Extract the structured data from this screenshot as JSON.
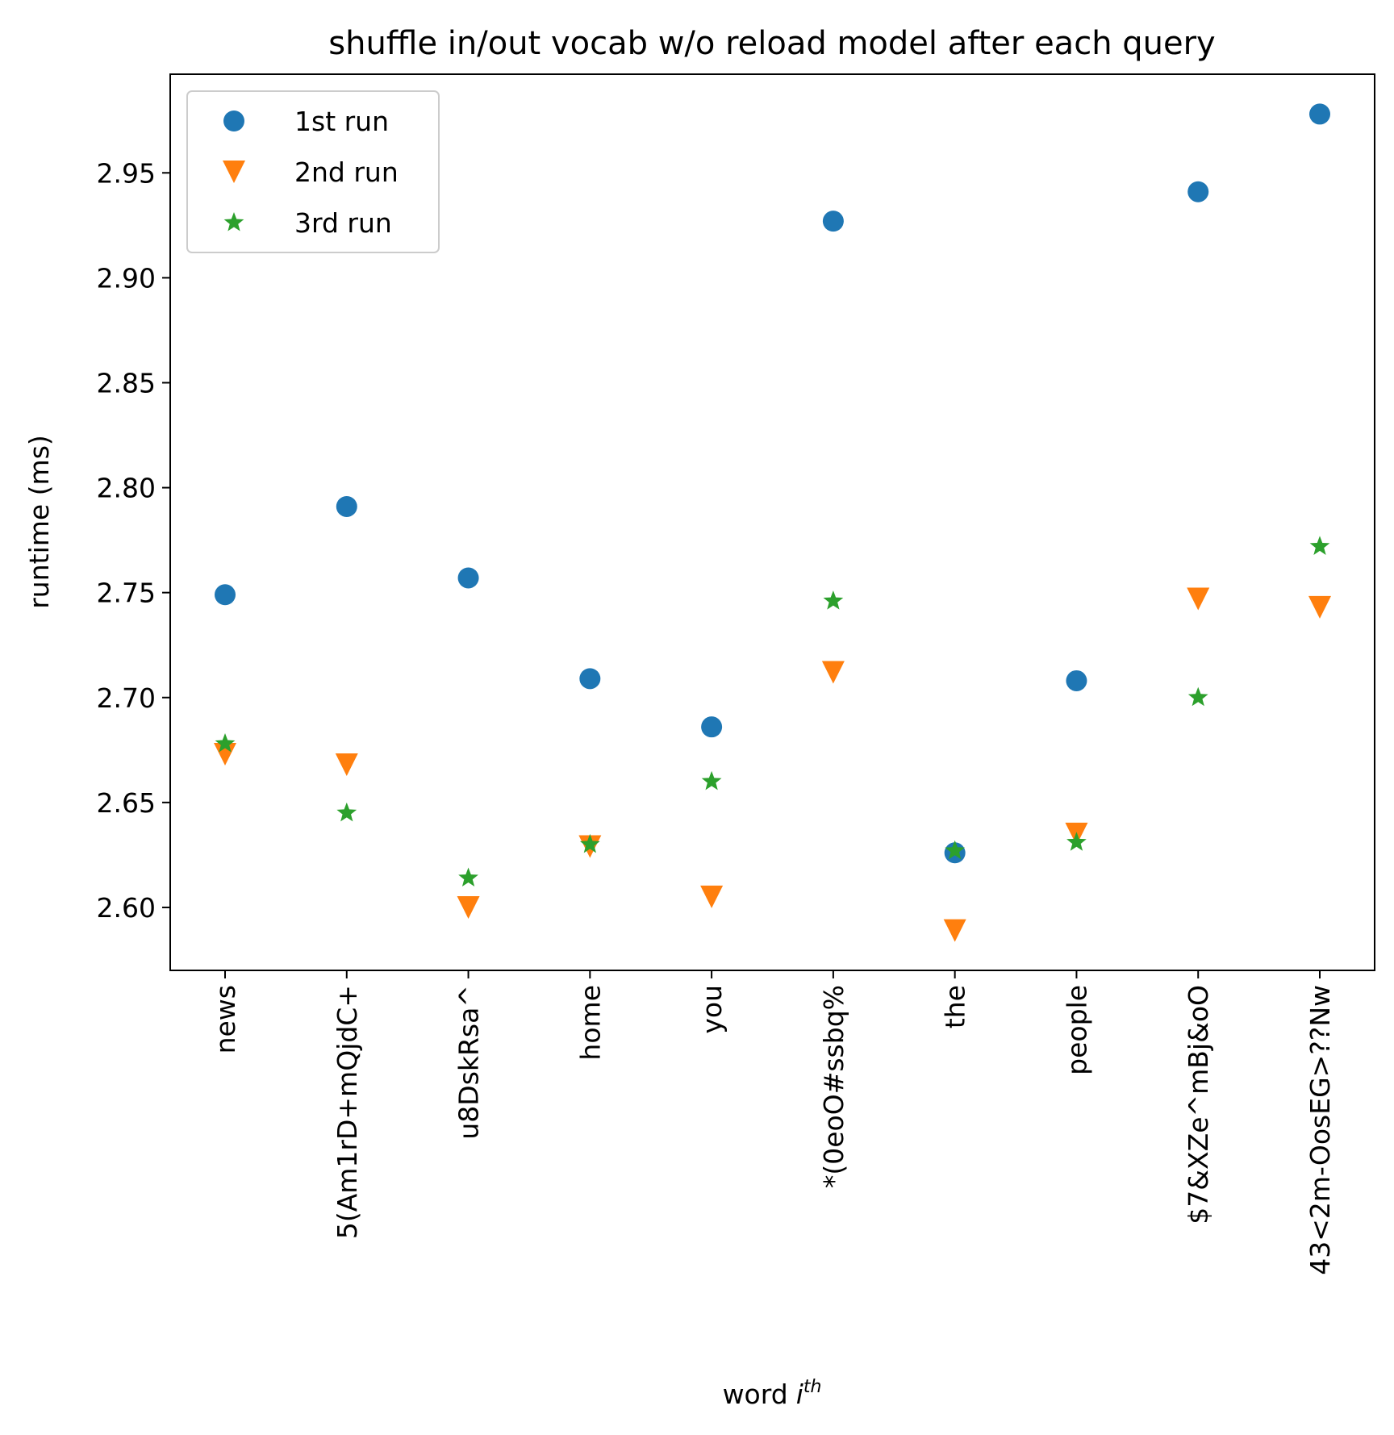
{
  "chart_data": {
    "type": "scatter",
    "title": "shuffle in/out vocab w/o reload model after each query",
    "xlabel": "word",
    "xlabel_sup": "th",
    "xlabel_italic": "i",
    "ylabel": "runtime (ms)",
    "categories": [
      "news",
      "5(Am1rD+mQjdC+",
      "u8DskRsa^",
      "home",
      "you",
      "*(0eoO#ssbq%",
      "the",
      "people",
      "$7&XZe^mBj&oO",
      "43<2m-OosEG>??Nw"
    ],
    "ylim": [
      2.57,
      2.997
    ],
    "yticks": [
      "2.60",
      "2.65",
      "2.70",
      "2.75",
      "2.80",
      "2.85",
      "2.90",
      "2.95"
    ],
    "grid": false,
    "legend_position": "upper-left",
    "series": [
      {
        "name": "1st run",
        "marker": "circle",
        "color": "#1f77b4",
        "values": [
          2.749,
          2.791,
          2.757,
          2.709,
          2.686,
          2.927,
          2.626,
          2.708,
          2.941,
          2.978
        ]
      },
      {
        "name": "2nd run",
        "marker": "triangle-down",
        "color": "#ff7f0e",
        "values": [
          2.673,
          2.668,
          2.6,
          2.629,
          2.605,
          2.712,
          2.589,
          2.635,
          2.747,
          2.743
        ]
      },
      {
        "name": "3rd run",
        "marker": "star",
        "color": "#2ca02c",
        "values": [
          2.678,
          2.645,
          2.614,
          2.63,
          2.66,
          2.746,
          2.627,
          2.631,
          2.7,
          2.772
        ]
      }
    ]
  }
}
